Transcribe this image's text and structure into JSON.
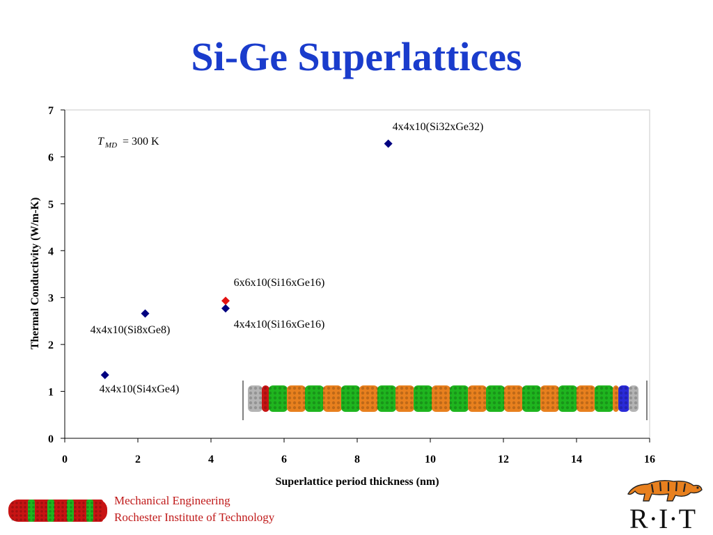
{
  "slide": {
    "title": "Si-Ge Superlattices",
    "footer": {
      "department": "Mechanical Engineering",
      "institution": "Rochester Institute of Technology"
    },
    "logo_text": "R·I·T"
  },
  "chart_data": {
    "type": "scatter",
    "title": "",
    "xlabel": "Superlattice period thickness (nm)",
    "ylabel": "Thermal Conductivity (W/m-K)",
    "xlim": [
      0,
      16
    ],
    "ylim": [
      0,
      7
    ],
    "x_ticks": [
      0,
      2,
      4,
      6,
      8,
      10,
      12,
      14,
      16
    ],
    "y_ticks": [
      0,
      1,
      2,
      3,
      4,
      5,
      6,
      7
    ],
    "grid": false,
    "annotation": {
      "symbol": "T",
      "subscript": "MD",
      "text": " = 300 K"
    },
    "series": [
      {
        "color": "#000080",
        "points": [
          {
            "x": 1.1,
            "y": 1.35,
            "label": "4x4x10(Si4xGe4)"
          },
          {
            "x": 2.2,
            "y": 2.66,
            "label": "4x4x10(Si8xGe8)"
          },
          {
            "x": 4.4,
            "y": 2.77,
            "label": "4x4x10(Si16xGe16)"
          },
          {
            "x": 8.85,
            "y": 6.28,
            "label": "4x4x10(Si32xGe32)"
          }
        ]
      },
      {
        "color": "#e31212",
        "points": [
          {
            "x": 4.4,
            "y": 2.93,
            "label": "6x6x10(Si16xGe16)"
          }
        ]
      }
    ]
  },
  "colors": {
    "title": "#1a3ccc",
    "footer": "#c01a1a",
    "orange": "#e8801e",
    "green": "#1fb51f",
    "red": "#c81414",
    "blue": "#2a2ad8",
    "gray": "#b4b4b4"
  },
  "icons": {
    "nanowire": "superlattice-nanowire-image",
    "footer": "si-ge-nanowire-graphic",
    "logo": "tiger-logo"
  }
}
